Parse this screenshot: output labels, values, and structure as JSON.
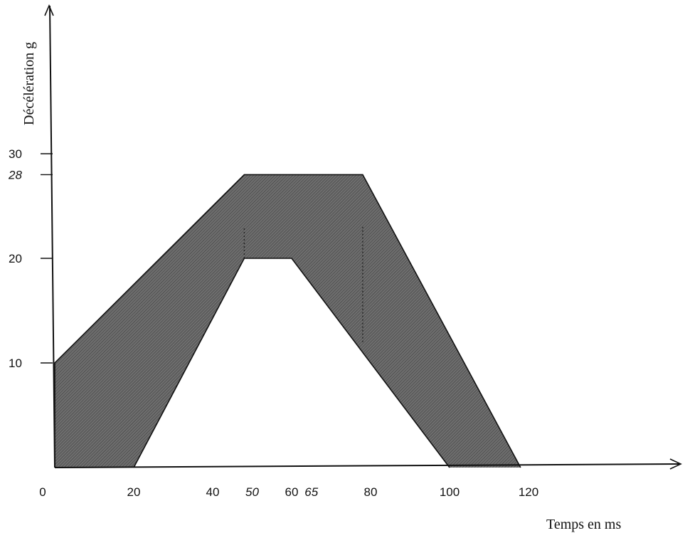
{
  "chart_data": {
    "type": "area",
    "title": "",
    "xlabel": "Temps en ms",
    "ylabel": "Décélération g",
    "x_ticks": [
      {
        "value": 0,
        "label": "0",
        "italic": false
      },
      {
        "value": 20,
        "label": "20",
        "italic": false
      },
      {
        "value": 40,
        "label": "40",
        "italic": false
      },
      {
        "value": 50,
        "label": "50",
        "italic": true
      },
      {
        "value": 60,
        "label": "60",
        "italic": false
      },
      {
        "value": 65,
        "label": "65",
        "italic": true
      },
      {
        "value": 80,
        "label": "80",
        "italic": false
      },
      {
        "value": 100,
        "label": "100",
        "italic": false
      },
      {
        "value": 120,
        "label": "120",
        "italic": false
      }
    ],
    "y_ticks": [
      {
        "value": 10,
        "label": "10",
        "italic": false
      },
      {
        "value": 20,
        "label": "20",
        "italic": false
      },
      {
        "value": 28,
        "label": "28",
        "italic": true
      },
      {
        "value": 30,
        "label": "30",
        "italic": false
      }
    ],
    "xlim": [
      0,
      165
    ],
    "ylim": [
      0,
      45
    ],
    "grid": false,
    "corridor_fill_color": "#6e6e6e",
    "line_color": "#111111",
    "series": [
      {
        "role": "upper-bound",
        "points": [
          [
            0,
            0
          ],
          [
            0,
            10
          ],
          [
            48,
            28
          ],
          [
            78,
            28
          ],
          [
            118,
            0
          ]
        ]
      },
      {
        "role": "lower-bound",
        "points": [
          [
            20,
            0
          ],
          [
            48,
            20
          ],
          [
            60,
            20
          ],
          [
            100,
            0
          ]
        ]
      }
    ],
    "dashed_markers": [
      {
        "x": 48,
        "y_from": 20,
        "y_to": 23
      },
      {
        "x": 78,
        "y_from": 12,
        "y_to": 23
      }
    ]
  }
}
